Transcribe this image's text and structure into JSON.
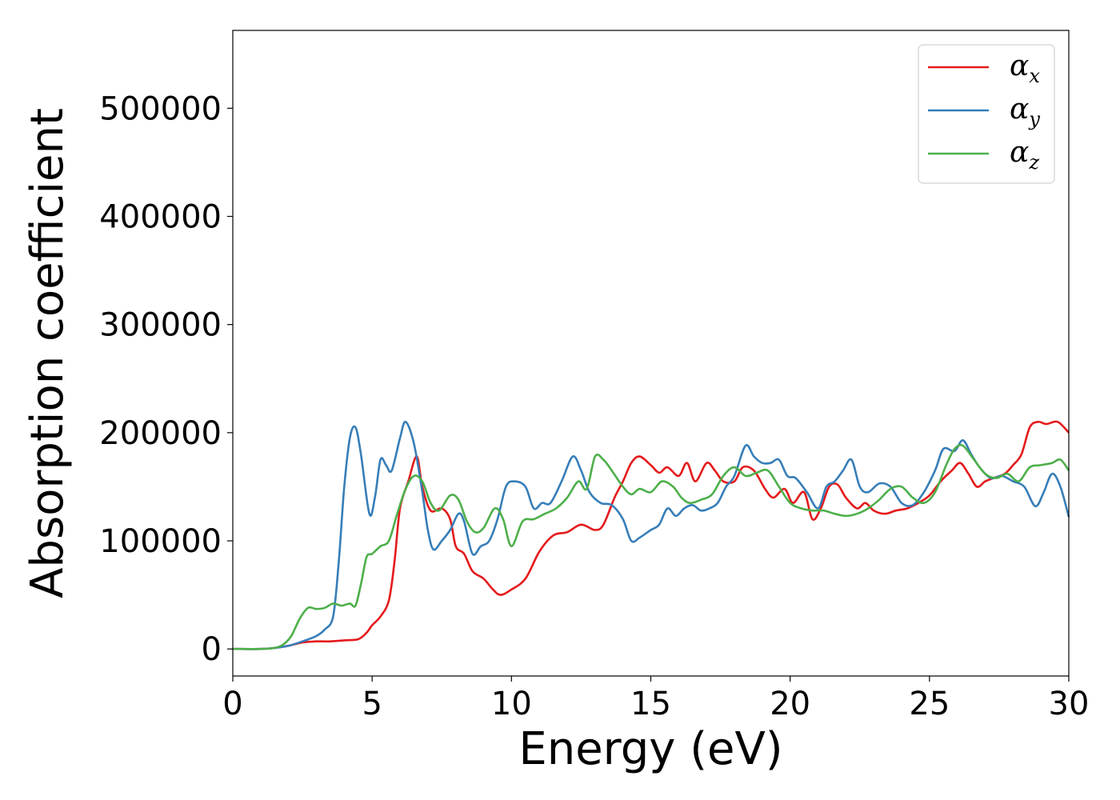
{
  "chart_data": {
    "type": "line",
    "xlabel": "Energy (eV)",
    "ylabel": "Absorption coefficient",
    "xlim": [
      0,
      30
    ],
    "ylim": [
      -25000,
      572000
    ],
    "xticks": [
      0,
      5,
      10,
      15,
      20,
      25,
      30
    ],
    "xtick_labels": [
      "0",
      "5",
      "10",
      "15",
      "20",
      "25",
      "30"
    ],
    "yticks": [
      0,
      100000,
      200000,
      300000,
      400000,
      500000
    ],
    "ytick_labels": [
      "0",
      "100000",
      "200000",
      "300000",
      "400000",
      "500000"
    ],
    "grid": false,
    "legend": {
      "placement": "top-right"
    },
    "series": [
      {
        "name": "α",
        "subscript": "x",
        "color": "#e41a1c",
        "points": [
          [
            0,
            0
          ],
          [
            1,
            0
          ],
          [
            1.5,
            1000
          ],
          [
            2,
            3000
          ],
          [
            2.5,
            6000
          ],
          [
            3,
            7000
          ],
          [
            3.5,
            7000
          ],
          [
            4,
            8000
          ],
          [
            4.5,
            9000
          ],
          [
            4.8,
            15000
          ],
          [
            5,
            22000
          ],
          [
            5.3,
            30000
          ],
          [
            5.6,
            45000
          ],
          [
            5.8,
            80000
          ],
          [
            6,
            130000
          ],
          [
            6.3,
            155000
          ],
          [
            6.6,
            178000
          ],
          [
            6.8,
            150000
          ],
          [
            7.1,
            128000
          ],
          [
            7.5,
            130000
          ],
          [
            7.8,
            120000
          ],
          [
            8,
            95000
          ],
          [
            8.3,
            88000
          ],
          [
            8.6,
            72000
          ],
          [
            9,
            65000
          ],
          [
            9.3,
            56000
          ],
          [
            9.6,
            50000
          ],
          [
            10,
            55000
          ],
          [
            10.5,
            65000
          ],
          [
            11,
            90000
          ],
          [
            11.5,
            105000
          ],
          [
            12,
            108000
          ],
          [
            12.5,
            115000
          ],
          [
            13,
            110000
          ],
          [
            13.3,
            115000
          ],
          [
            13.7,
            140000
          ],
          [
            14,
            155000
          ],
          [
            14.3,
            172000
          ],
          [
            14.6,
            178000
          ],
          [
            15,
            170000
          ],
          [
            15.3,
            163000
          ],
          [
            15.6,
            168000
          ],
          [
            16,
            160000
          ],
          [
            16.3,
            172000
          ],
          [
            16.6,
            155000
          ],
          [
            17,
            172000
          ],
          [
            17.3,
            165000
          ],
          [
            17.6,
            155000
          ],
          [
            18,
            155000
          ],
          [
            18.3,
            168000
          ],
          [
            18.7,
            165000
          ],
          [
            19.1,
            148000
          ],
          [
            19.4,
            140000
          ],
          [
            19.8,
            148000
          ],
          [
            20.1,
            135000
          ],
          [
            20.5,
            145000
          ],
          [
            20.8,
            120000
          ],
          [
            21.1,
            130000
          ],
          [
            21.4,
            150000
          ],
          [
            21.7,
            152000
          ],
          [
            22,
            140000
          ],
          [
            22.4,
            130000
          ],
          [
            22.7,
            135000
          ],
          [
            23,
            128000
          ],
          [
            23.4,
            125000
          ],
          [
            23.8,
            128000
          ],
          [
            24.2,
            130000
          ],
          [
            24.6,
            135000
          ],
          [
            25,
            142000
          ],
          [
            25.4,
            155000
          ],
          [
            25.8,
            165000
          ],
          [
            26.1,
            172000
          ],
          [
            26.4,
            162000
          ],
          [
            26.7,
            150000
          ],
          [
            27,
            155000
          ],
          [
            27.3,
            158000
          ],
          [
            27.7,
            162000
          ],
          [
            28,
            170000
          ],
          [
            28.3,
            180000
          ],
          [
            28.6,
            205000
          ],
          [
            28.9,
            210000
          ],
          [
            29.2,
            208000
          ],
          [
            29.6,
            210000
          ],
          [
            30,
            200000
          ]
        ]
      },
      {
        "name": "α",
        "subscript": "y",
        "color": "#377eb8",
        "points": [
          [
            0,
            0
          ],
          [
            1,
            0
          ],
          [
            1.5,
            1000
          ],
          [
            2,
            3000
          ],
          [
            2.5,
            7000
          ],
          [
            3,
            12000
          ],
          [
            3.3,
            18000
          ],
          [
            3.6,
            30000
          ],
          [
            3.8,
            80000
          ],
          [
            4,
            150000
          ],
          [
            4.2,
            195000
          ],
          [
            4.4,
            205000
          ],
          [
            4.6,
            180000
          ],
          [
            4.9,
            125000
          ],
          [
            5.1,
            140000
          ],
          [
            5.3,
            175000
          ],
          [
            5.5,
            170000
          ],
          [
            5.7,
            165000
          ],
          [
            6,
            195000
          ],
          [
            6.2,
            210000
          ],
          [
            6.5,
            190000
          ],
          [
            6.8,
            145000
          ],
          [
            7,
            110000
          ],
          [
            7.2,
            92000
          ],
          [
            7.5,
            100000
          ],
          [
            7.8,
            110000
          ],
          [
            8.1,
            125000
          ],
          [
            8.3,
            118000
          ],
          [
            8.6,
            88000
          ],
          [
            8.9,
            95000
          ],
          [
            9.2,
            100000
          ],
          [
            9.5,
            120000
          ],
          [
            9.8,
            150000
          ],
          [
            10.1,
            155000
          ],
          [
            10.5,
            150000
          ],
          [
            10.8,
            130000
          ],
          [
            11.1,
            135000
          ],
          [
            11.4,
            135000
          ],
          [
            11.8,
            155000
          ],
          [
            12.2,
            178000
          ],
          [
            12.5,
            165000
          ],
          [
            12.8,
            145000
          ],
          [
            13.2,
            135000
          ],
          [
            13.6,
            133000
          ],
          [
            14,
            120000
          ],
          [
            14.3,
            100000
          ],
          [
            14.6,
            103000
          ],
          [
            15,
            110000
          ],
          [
            15.3,
            115000
          ],
          [
            15.6,
            130000
          ],
          [
            15.9,
            123000
          ],
          [
            16.2,
            130000
          ],
          [
            16.5,
            133000
          ],
          [
            16.8,
            128000
          ],
          [
            17.1,
            130000
          ],
          [
            17.4,
            135000
          ],
          [
            17.7,
            150000
          ],
          [
            18,
            160000
          ],
          [
            18.4,
            188000
          ],
          [
            18.7,
            178000
          ],
          [
            19,
            172000
          ],
          [
            19.3,
            172000
          ],
          [
            19.6,
            175000
          ],
          [
            19.9,
            160000
          ],
          [
            20.2,
            158000
          ],
          [
            20.6,
            145000
          ],
          [
            21,
            130000
          ],
          [
            21.3,
            150000
          ],
          [
            21.6,
            155000
          ],
          [
            21.9,
            165000
          ],
          [
            22.2,
            175000
          ],
          [
            22.5,
            150000
          ],
          [
            22.8,
            145000
          ],
          [
            23.2,
            153000
          ],
          [
            23.6,
            150000
          ],
          [
            24,
            135000
          ],
          [
            24.4,
            133000
          ],
          [
            24.8,
            145000
          ],
          [
            25.2,
            165000
          ],
          [
            25.5,
            185000
          ],
          [
            25.9,
            183000
          ],
          [
            26.2,
            193000
          ],
          [
            26.5,
            180000
          ],
          [
            26.8,
            168000
          ],
          [
            27.2,
            158000
          ],
          [
            27.6,
            160000
          ],
          [
            28,
            155000
          ],
          [
            28.4,
            150000
          ],
          [
            28.8,
            132000
          ],
          [
            29.1,
            145000
          ],
          [
            29.4,
            162000
          ],
          [
            29.7,
            150000
          ],
          [
            30,
            122000
          ]
        ]
      },
      {
        "name": "α",
        "subscript": "z",
        "color": "#4daf4a",
        "points": [
          [
            0,
            0
          ],
          [
            1,
            0
          ],
          [
            1.5,
            1000
          ],
          [
            1.8,
            4000
          ],
          [
            2.1,
            12000
          ],
          [
            2.4,
            28000
          ],
          [
            2.7,
            38000
          ],
          [
            3,
            37000
          ],
          [
            3.3,
            38000
          ],
          [
            3.6,
            42000
          ],
          [
            3.9,
            40000
          ],
          [
            4.2,
            42000
          ],
          [
            4.4,
            40000
          ],
          [
            4.6,
            60000
          ],
          [
            4.8,
            85000
          ],
          [
            5,
            88000
          ],
          [
            5.3,
            95000
          ],
          [
            5.6,
            100000
          ],
          [
            5.9,
            125000
          ],
          [
            6.2,
            148000
          ],
          [
            6.5,
            160000
          ],
          [
            6.8,
            155000
          ],
          [
            7.1,
            135000
          ],
          [
            7.4,
            128000
          ],
          [
            7.8,
            142000
          ],
          [
            8.1,
            138000
          ],
          [
            8.4,
            118000
          ],
          [
            8.7,
            108000
          ],
          [
            9,
            112000
          ],
          [
            9.4,
            130000
          ],
          [
            9.7,
            120000
          ],
          [
            10,
            95000
          ],
          [
            10.4,
            118000
          ],
          [
            10.8,
            120000
          ],
          [
            11.2,
            125000
          ],
          [
            11.6,
            130000
          ],
          [
            12,
            140000
          ],
          [
            12.4,
            155000
          ],
          [
            12.7,
            148000
          ],
          [
            13,
            178000
          ],
          [
            13.3,
            175000
          ],
          [
            13.6,
            165000
          ],
          [
            14,
            150000
          ],
          [
            14.3,
            143000
          ],
          [
            14.6,
            148000
          ],
          [
            15,
            145000
          ],
          [
            15.4,
            155000
          ],
          [
            15.8,
            150000
          ],
          [
            16.1,
            140000
          ],
          [
            16.4,
            135000
          ],
          [
            16.8,
            138000
          ],
          [
            17.2,
            143000
          ],
          [
            17.6,
            160000
          ],
          [
            18,
            168000
          ],
          [
            18.4,
            160000
          ],
          [
            18.8,
            163000
          ],
          [
            19.2,
            165000
          ],
          [
            19.6,
            150000
          ],
          [
            20,
            135000
          ],
          [
            20.4,
            130000
          ],
          [
            20.8,
            128000
          ],
          [
            21.2,
            128000
          ],
          [
            21.6,
            125000
          ],
          [
            22,
            123000
          ],
          [
            22.4,
            125000
          ],
          [
            22.8,
            130000
          ],
          [
            23.2,
            138000
          ],
          [
            23.6,
            148000
          ],
          [
            24,
            150000
          ],
          [
            24.4,
            140000
          ],
          [
            24.8,
            135000
          ],
          [
            25.2,
            145000
          ],
          [
            25.6,
            170000
          ],
          [
            25.9,
            185000
          ],
          [
            26.2,
            188000
          ],
          [
            26.6,
            175000
          ],
          [
            27,
            162000
          ],
          [
            27.4,
            158000
          ],
          [
            27.8,
            162000
          ],
          [
            28.2,
            155000
          ],
          [
            28.6,
            168000
          ],
          [
            29,
            170000
          ],
          [
            29.4,
            172000
          ],
          [
            29.7,
            175000
          ],
          [
            30,
            165000
          ]
        ]
      }
    ]
  }
}
